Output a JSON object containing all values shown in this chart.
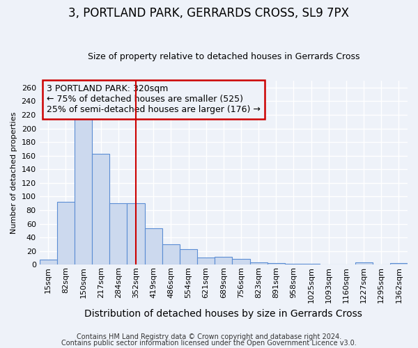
{
  "title": "3, PORTLAND PARK, GERRARDS CROSS, SL9 7PX",
  "subtitle": "Size of property relative to detached houses in Gerrards Cross",
  "xlabel": "Distribution of detached houses by size in Gerrards Cross",
  "ylabel": "Number of detached properties",
  "bar_labels": [
    "15sqm",
    "82sqm",
    "150sqm",
    "217sqm",
    "284sqm",
    "352sqm",
    "419sqm",
    "486sqm",
    "554sqm",
    "621sqm",
    "689sqm",
    "756sqm",
    "823sqm",
    "891sqm",
    "958sqm",
    "1025sqm",
    "1093sqm",
    "1160sqm",
    "1227sqm",
    "1295sqm",
    "1362sqm"
  ],
  "bar_values": [
    7,
    92,
    215,
    163,
    90,
    90,
    53,
    30,
    23,
    10,
    11,
    8,
    3,
    2,
    1,
    1,
    0,
    0,
    3,
    0,
    2
  ],
  "bar_color": "#ccd9ee",
  "bar_edgecolor": "#5b8dd4",
  "ylim": [
    0,
    270
  ],
  "yticks": [
    0,
    20,
    40,
    60,
    80,
    100,
    120,
    140,
    160,
    180,
    200,
    220,
    240,
    260
  ],
  "vline_x": 5.0,
  "vline_color": "#cc0000",
  "annotation_text": "3 PORTLAND PARK: 320sqm\n← 75% of detached houses are smaller (525)\n25% of semi-detached houses are larger (176) →",
  "annotation_box_color": "#cc0000",
  "footer1": "Contains HM Land Registry data © Crown copyright and database right 2024.",
  "footer2": "Contains public sector information licensed under the Open Government Licence v3.0.",
  "background_color": "#eef2f9",
  "plot_bg_color": "#eef2f9",
  "grid_color": "#ffffff",
  "title_fontsize": 12,
  "subtitle_fontsize": 9,
  "xlabel_fontsize": 10,
  "ylabel_fontsize": 8,
  "tick_fontsize": 8,
  "annotation_fontsize": 9,
  "footer_fontsize": 7
}
